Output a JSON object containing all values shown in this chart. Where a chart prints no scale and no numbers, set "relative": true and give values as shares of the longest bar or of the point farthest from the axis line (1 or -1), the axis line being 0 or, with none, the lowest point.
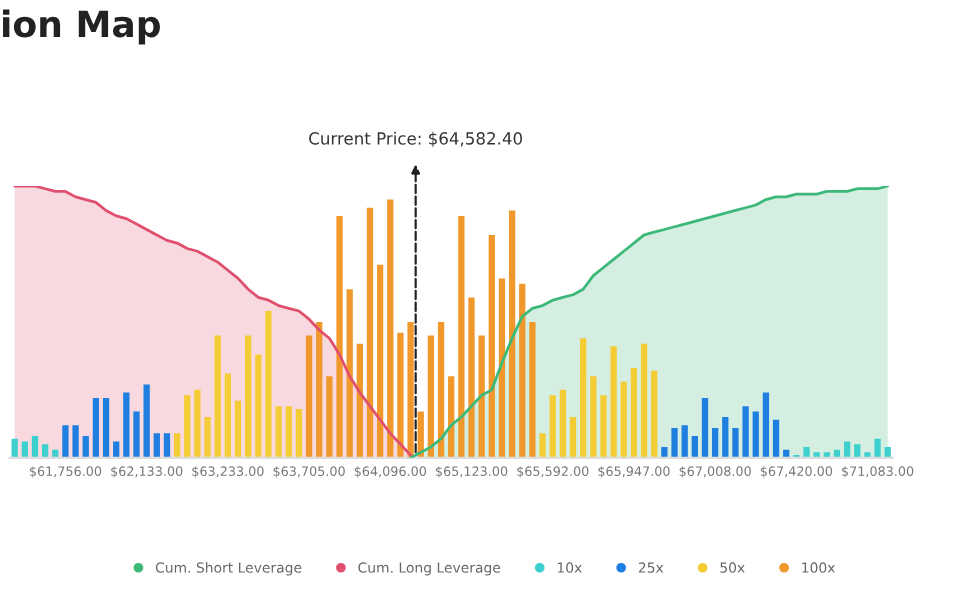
{
  "chart_data": {
    "type": "bar",
    "title": "ion Map",
    "relative": true,
    "legend": "bottom",
    "tick_labels": "x",
    "categories": [
      null,
      null,
      null,
      null,
      null,
      "$61,756.00",
      null,
      null,
      null,
      null,
      null,
      null,
      null,
      "$62,133.00",
      null,
      null,
      null,
      null,
      null,
      null,
      null,
      "$63,233.00",
      null,
      null,
      null,
      null,
      null,
      null,
      null,
      "$63,705.00",
      null,
      null,
      null,
      null,
      null,
      null,
      null,
      "$64,096.00",
      null,
      null,
      null,
      null,
      null,
      null,
      null,
      "$65,123.00",
      null,
      null,
      null,
      null,
      null,
      null,
      null,
      "$65,592.00",
      null,
      null,
      null,
      null,
      null,
      null,
      null,
      "$65,947.00",
      null,
      null,
      null,
      null,
      null,
      null,
      null,
      "$67,008.00",
      null,
      null,
      null,
      null,
      null,
      null,
      null,
      "$67,420.00",
      null,
      null,
      null,
      null,
      null,
      null,
      null,
      "$71,083.00",
      null
    ],
    "series": [
      {
        "name": "Cum. Short Leverage",
        "type": "area",
        "color": "#3cb878",
        "values": [
          null,
          null,
          null,
          null,
          null,
          null,
          null,
          null,
          null,
          null,
          null,
          null,
          null,
          null,
          null,
          null,
          null,
          null,
          null,
          null,
          null,
          null,
          null,
          null,
          null,
          null,
          null,
          null,
          null,
          null,
          null,
          null,
          null,
          null,
          null,
          null,
          null,
          null,
          null,
          0,
          0.02,
          0.04,
          0.07,
          0.12,
          0.15,
          0.19,
          0.23,
          0.25,
          0.35,
          0.44,
          0.52,
          0.55,
          0.56,
          0.58,
          0.59,
          0.6,
          0.62,
          0.67,
          0.7,
          0.73,
          0.76,
          0.79,
          0.82,
          0.83,
          0.84,
          0.85,
          0.86,
          0.87,
          0.88,
          0.89,
          0.9,
          0.91,
          0.92,
          0.93,
          0.95,
          0.96,
          0.96,
          0.97,
          0.97,
          0.97,
          0.98,
          0.98,
          0.98,
          0.99,
          0.99,
          0.99,
          1.0
        ]
      },
      {
        "name": "Cum. Long Leverage",
        "type": "area",
        "color": "#e0506e",
        "values": [
          1.0,
          1.0,
          1.0,
          0.99,
          0.98,
          0.98,
          0.96,
          0.95,
          0.94,
          0.91,
          0.89,
          0.88,
          0.86,
          0.84,
          0.82,
          0.8,
          0.79,
          0.77,
          0.76,
          0.74,
          0.72,
          0.69,
          0.66,
          0.62,
          0.59,
          0.58,
          0.56,
          0.55,
          0.54,
          0.51,
          0.47,
          0.44,
          0.38,
          0.3,
          0.24,
          0.19,
          0.14,
          0.09,
          0.05,
          0.01,
          null,
          null,
          null,
          null,
          null,
          null,
          null,
          null,
          null,
          null,
          null,
          null,
          null,
          null,
          null,
          null,
          null,
          null,
          null,
          null,
          null,
          null,
          null,
          null,
          null,
          null,
          null,
          null,
          null,
          null,
          null,
          null,
          null,
          null,
          null,
          null,
          null,
          null,
          null,
          null,
          null,
          null,
          null,
          null,
          null,
          null,
          null
        ]
      },
      {
        "name": "10x",
        "color": "#3ecfcf",
        "values": [
          0.07,
          0.06,
          0.08,
          0.05,
          0.03,
          null,
          null,
          null,
          null,
          null,
          null,
          null,
          null,
          null,
          null,
          null,
          null,
          null,
          null,
          null,
          null,
          null,
          null,
          null,
          null,
          null,
          null,
          null,
          null,
          null,
          null,
          null,
          null,
          null,
          null,
          null,
          null,
          null,
          null,
          null,
          null,
          null,
          null,
          null,
          null,
          null,
          null,
          null,
          null,
          null,
          null,
          null,
          null,
          null,
          null,
          null,
          null,
          null,
          null,
          null,
          null,
          null,
          null,
          null,
          null,
          null,
          null,
          null,
          null,
          null,
          null,
          null,
          null,
          null,
          null,
          null,
          null,
          0.01,
          0.04,
          0.02,
          0.02,
          0.03,
          0.06,
          0.05,
          0.02,
          0.07,
          0.04
        ]
      },
      {
        "name": "25x",
        "color": "#1f7fe0",
        "values": [
          null,
          null,
          null,
          null,
          null,
          0.12,
          0.12,
          0.08,
          0.22,
          0.22,
          0.06,
          0.24,
          0.17,
          0.27,
          0.09,
          0.09,
          null,
          null,
          null,
          null,
          null,
          null,
          null,
          null,
          null,
          null,
          null,
          null,
          null,
          null,
          null,
          null,
          null,
          null,
          null,
          null,
          null,
          null,
          null,
          null,
          null,
          null,
          null,
          null,
          null,
          null,
          null,
          null,
          null,
          null,
          null,
          null,
          null,
          null,
          null,
          null,
          null,
          null,
          null,
          null,
          null,
          null,
          null,
          null,
          0.04,
          0.11,
          0.12,
          0.08,
          0.22,
          0.11,
          0.15,
          0.11,
          0.19,
          0.17,
          0.24,
          0.14,
          0.03,
          null,
          null,
          null,
          null,
          null,
          null,
          null,
          null,
          null,
          null
        ]
      },
      {
        "name": "50x",
        "color": "#f4cc35",
        "values": [
          null,
          null,
          null,
          null,
          null,
          null,
          null,
          null,
          null,
          null,
          null,
          null,
          null,
          null,
          null,
          null,
          0.09,
          0.23,
          0.25,
          0.15,
          0.45,
          0.31,
          0.21,
          0.45,
          0.38,
          0.54,
          0.19,
          0.19,
          0.18,
          null,
          null,
          null,
          null,
          null,
          null,
          null,
          null,
          null,
          null,
          null,
          null,
          null,
          null,
          null,
          null,
          null,
          null,
          null,
          null,
          null,
          null,
          null,
          0.09,
          0.23,
          0.25,
          0.15,
          0.44,
          0.3,
          0.23,
          0.41,
          0.28,
          0.33,
          0.42,
          0.32,
          null,
          null,
          null,
          null,
          null,
          null,
          null,
          null,
          null,
          null,
          null,
          null,
          null,
          null,
          null,
          null,
          null,
          null,
          null,
          null,
          null,
          null,
          null
        ]
      },
      {
        "name": "100x",
        "color": "#f0982c",
        "values": [
          null,
          null,
          null,
          null,
          null,
          null,
          null,
          null,
          null,
          null,
          null,
          null,
          null,
          null,
          null,
          null,
          null,
          null,
          null,
          null,
          null,
          null,
          null,
          null,
          null,
          null,
          null,
          null,
          null,
          0.45,
          0.5,
          0.3,
          0.89,
          0.62,
          0.42,
          0.92,
          0.71,
          0.95,
          0.46,
          0.5,
          0.17,
          0.45,
          0.5,
          0.3,
          0.89,
          0.59,
          0.45,
          0.82,
          0.66,
          0.91,
          0.64,
          0.5,
          null,
          null,
          null,
          null,
          null,
          null,
          null,
          null,
          null,
          null,
          null,
          null,
          null,
          null,
          null,
          null,
          null,
          null,
          null,
          null,
          null,
          null,
          null,
          null,
          null,
          null,
          null,
          null,
          null,
          null,
          null,
          null,
          null,
          null,
          null
        ]
      }
    ],
    "annotations": [
      "Current Price: $64,582.40"
    ]
  }
}
